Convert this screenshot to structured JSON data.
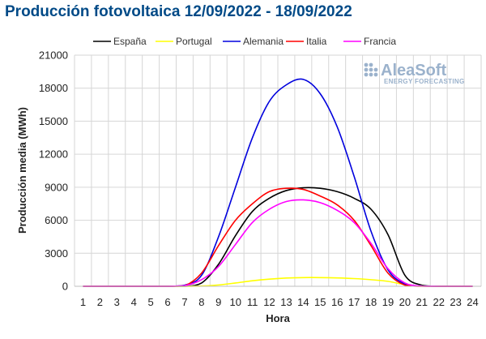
{
  "chart_data": {
    "type": "line",
    "title": "Producción fotovoltaica 12/09/2022 - 18/09/2022",
    "xlabel": "Hora",
    "ylabel": "Producción media (MWh)",
    "x": [
      1,
      2,
      3,
      4,
      5,
      6,
      7,
      8,
      9,
      10,
      11,
      12,
      13,
      14,
      15,
      16,
      17,
      18,
      19,
      20,
      21,
      22,
      23,
      24
    ],
    "ylim": [
      0,
      21000
    ],
    "yticks": [
      0,
      3000,
      6000,
      9000,
      12000,
      15000,
      18000,
      21000
    ],
    "grid": true,
    "legend_position": "top",
    "series": [
      {
        "name": "España",
        "color": "#000000",
        "values": [
          0,
          0,
          0,
          0,
          0,
          0,
          0,
          300,
          2000,
          4600,
          6800,
          8000,
          8700,
          8950,
          8900,
          8600,
          8000,
          7000,
          4700,
          1000,
          100,
          0,
          0,
          0
        ]
      },
      {
        "name": "Portugal",
        "color": "#ffff00",
        "values": [
          0,
          0,
          0,
          0,
          0,
          0,
          0,
          20,
          120,
          300,
          500,
          650,
          750,
          790,
          790,
          760,
          700,
          600,
          450,
          150,
          20,
          0,
          0,
          0
        ]
      },
      {
        "name": "Alemania",
        "color": "#0000dd",
        "values": [
          0,
          0,
          0,
          0,
          0,
          0,
          100,
          1000,
          4500,
          9000,
          13500,
          16800,
          18300,
          18800,
          17500,
          14500,
          10000,
          5000,
          1500,
          200,
          20,
          0,
          0,
          0
        ]
      },
      {
        "name": "Italia",
        "color": "#ff0000",
        "values": [
          0,
          0,
          0,
          0,
          0,
          0,
          50,
          1200,
          3700,
          6000,
          7500,
          8600,
          8900,
          8800,
          8200,
          7400,
          6000,
          3700,
          1200,
          100,
          0,
          0,
          0,
          0
        ]
      },
      {
        "name": "Francia",
        "color": "#ff00ff",
        "values": [
          0,
          0,
          0,
          0,
          0,
          0,
          50,
          600,
          1800,
          3800,
          5800,
          7000,
          7700,
          7850,
          7600,
          6900,
          5800,
          3900,
          1600,
          300,
          20,
          0,
          0,
          0
        ]
      }
    ]
  },
  "watermark": {
    "brand": "AleaSoft",
    "tagline": "ENERGY FORECASTING"
  }
}
